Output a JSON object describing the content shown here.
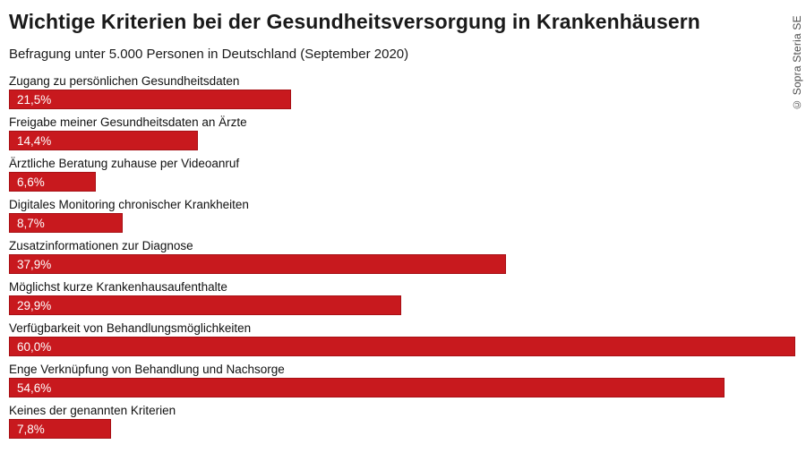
{
  "header": {
    "title": "Wichtige Kriterien bei der Gesundheitsversorgung in Krankenhäusern",
    "subtitle": "Befragung unter 5.000 Personen in Deutschland (September 2020)"
  },
  "credit": "© Sopra Steria SE",
  "chart_data": {
    "type": "bar",
    "orientation": "horizontal",
    "title": "Wichtige Kriterien bei der Gesundheitsversorgung in Krankenhäusern",
    "subtitle": "Befragung unter 5.000 Personen in Deutschland (September 2020)",
    "categories": [
      "Zugang zu persönlichen Gesundheitsdaten",
      "Freigabe meiner Gesundheitsdaten an Ärzte",
      "Ärztliche Beratung zuhause per Videoanruf",
      "Digitales Monitoring chronischer Krankheiten",
      "Zusatzinformationen zur Diagnose",
      "Möglichst kurze Krankenhausaufenthalte",
      "Verfügbarkeit von Behandlungsmöglichkeiten",
      "Enge Verknüpfung von Behandlung und Nachsorge",
      "Keines der genannten Kriterien"
    ],
    "values": [
      21.5,
      14.4,
      6.6,
      8.7,
      37.9,
      29.9,
      60.0,
      54.6,
      7.8
    ],
    "value_labels": [
      "21,5%",
      "14,4%",
      "6,6%",
      "8,7%",
      "37,9%",
      "29,9%",
      "60,0%",
      "54,6%",
      "7,8%"
    ],
    "xlabel": "",
    "ylabel": "",
    "xlim": [
      0,
      60
    ],
    "grid": false,
    "legend": null,
    "bar_color": "#c8191e",
    "value_label_color": "#ffffff"
  }
}
